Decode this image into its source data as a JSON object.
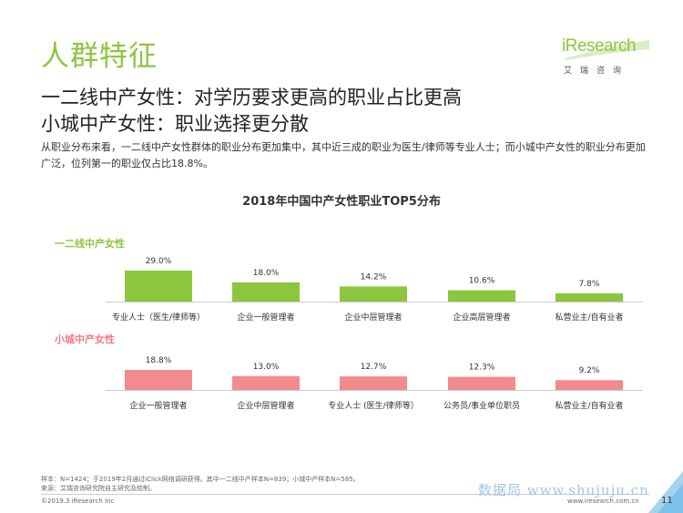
{
  "page": {
    "title": "人群特征",
    "subtitle_lines": [
      "一二线中产女性：对学历要求更高的职业占比更高",
      "小城中产女性：职业选择更分散"
    ],
    "description": "从职业分布来看，一二线中产女性群体的职业分布更加集中，其中近三成的职业为医生/律师等专业人士；而小城中产女性的职业分布更加广泛，位列第一的职业仅占比18.8%。",
    "logo_text": "iResearch",
    "logo_sub": "艾瑞咨询",
    "footnote_sample": "样本：N=1424；于2019年2月通过iClick网络调研获得。其中一二线中产样本N=839；小城中产样本N=585。",
    "footnote_source": "来源：艾瑞咨询研究院自主研究及绘制。",
    "copyright": "©2019.3 iResearch Inc",
    "website": "www.iresearch.com.cn",
    "watermark": "数据局 www.shujuju.cn",
    "page_number": "11"
  },
  "colors": {
    "green": "#8cc63e",
    "pink": "#f28b8e",
    "axis": "#cccccc",
    "logo_accent": "#7ab648"
  },
  "chart_data": {
    "type": "bar",
    "title": "2018年中国中产女性职业TOP5分布",
    "ylim": [
      0,
      30
    ],
    "grid": false,
    "groups": [
      {
        "name": "一二线中产女性",
        "color": "#8cc63e",
        "label_color": "#8cc63e",
        "categories": [
          "专业人士（医生/律师等）",
          "企业一般管理者",
          "企业中层管理者",
          "企业高层管理者",
          "私营业主/自有业者"
        ],
        "values": [
          29.0,
          18.0,
          14.2,
          10.6,
          7.8
        ],
        "value_labels": [
          "29.0%",
          "18.0%",
          "14.2%",
          "10.6%",
          "7.8%"
        ]
      },
      {
        "name": "小城中产女性",
        "color": "#f28b8e",
        "label_color": "#f07c80",
        "categories": [
          "企业一般管理者",
          "企业中层管理者",
          "专业人士 (医生/律师等）",
          "公务员/事业单位职员",
          "私营业主/自有业者"
        ],
        "values": [
          18.8,
          13.0,
          12.7,
          12.3,
          9.2
        ],
        "value_labels": [
          "18.8%",
          "13.0%",
          "12.7%",
          "12.3%",
          "9.2%"
        ]
      }
    ]
  }
}
